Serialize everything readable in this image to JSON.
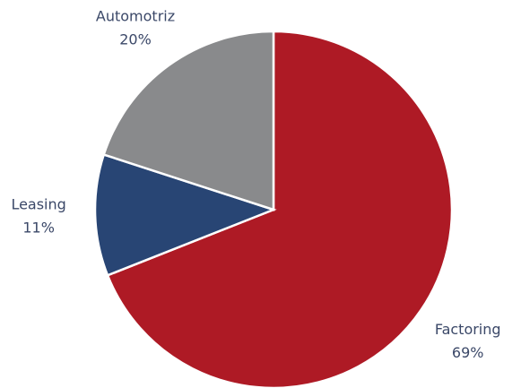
{
  "chart_data": {
    "type": "pie",
    "categories": [
      "Factoring",
      "Leasing",
      "Automotriz"
    ],
    "values": [
      69,
      11,
      20
    ],
    "value_labels": [
      "69%",
      "11%",
      "20%"
    ],
    "colors": [
      "#ae1a25",
      "#284574",
      "#898a8c"
    ]
  }
}
